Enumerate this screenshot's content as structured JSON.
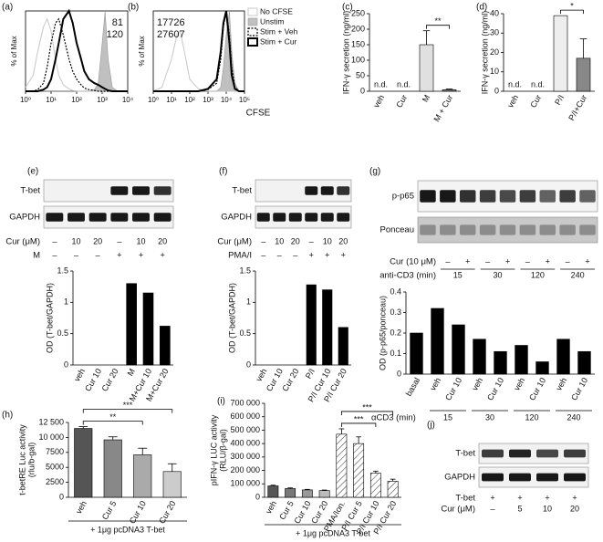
{
  "panel_labels": [
    "(a)",
    "(b)",
    "(c)",
    "(d)",
    "(e)",
    "(f)",
    "(g)",
    "(h)",
    "(i)",
    "(j)"
  ],
  "chart_data": [
    {
      "type": "line",
      "ylabel": "% of Max",
      "log_x": true,
      "xlim": [
        1,
        10000
      ],
      "xticks": [
        {
          "value": 1,
          "label": "10⁰"
        },
        {
          "value": 10,
          "label": "10¹"
        },
        {
          "value": 100,
          "label": "10²"
        },
        {
          "value": 1000,
          "label": "10³"
        },
        {
          "value": 10000,
          "label": "10⁴"
        }
      ],
      "ylim": [
        0,
        100
      ],
      "annotations": [
        "81",
        "120"
      ],
      "x": [
        1,
        2,
        3,
        5,
        7,
        10,
        15,
        20,
        30,
        50,
        70,
        100,
        150,
        200,
        300,
        500,
        700,
        1000,
        1300,
        1700,
        2500,
        4000,
        10000
      ],
      "series": [
        {
          "color": "#c8c8c8",
          "style": "thin",
          "values": [
            5,
            20,
            50,
            80,
            90,
            75,
            40,
            20,
            8,
            3,
            1,
            0,
            0,
            0,
            0,
            0,
            0,
            0,
            0,
            0,
            0,
            0,
            0
          ]
        },
        {
          "color": "#c0c0c0",
          "style": "filled",
          "values": [
            0,
            0,
            0,
            0,
            0,
            0,
            0,
            0,
            0,
            0,
            0,
            0,
            0,
            0,
            0,
            2,
            10,
            60,
            100,
            40,
            5,
            0,
            0
          ]
        },
        {
          "color": "#000000",
          "style": "dotted",
          "values": [
            0,
            0,
            2,
            10,
            30,
            60,
            85,
            90,
            70,
            40,
            25,
            15,
            8,
            4,
            2,
            1,
            0,
            0,
            0,
            0,
            0,
            0,
            0
          ]
        },
        {
          "color": "#000000",
          "style": "thick",
          "values": [
            0,
            0,
            0,
            2,
            5,
            15,
            40,
            60,
            90,
            100,
            85,
            60,
            40,
            25,
            15,
            10,
            8,
            5,
            3,
            1,
            0,
            0,
            0
          ]
        }
      ]
    },
    {
      "type": "line",
      "ylabel": "% of Max",
      "xlabel": "CFSE",
      "log_x": true,
      "xlim": [
        1,
        100000
      ],
      "xticks": [
        {
          "value": 1,
          "label": "10⁰"
        },
        {
          "value": 10,
          "label": "10¹"
        },
        {
          "value": 100,
          "label": "10²"
        },
        {
          "value": 1000,
          "label": "10³"
        },
        {
          "value": 10000,
          "label": "10⁴"
        },
        {
          "value": 100000,
          "label": "10⁵"
        }
      ],
      "ylim": [
        0,
        100
      ],
      "annotations": [
        "17726",
        "27607"
      ],
      "legend": "right",
      "x": [
        1,
        3,
        10,
        20,
        30,
        50,
        100,
        300,
        1000,
        3000,
        5000,
        7000,
        10000,
        15000,
        20000,
        30000,
        50000,
        100000
      ],
      "series": [
        {
          "name": "No CFSE",
          "color": "#c8c8c8",
          "style": "thin",
          "values": [
            0,
            5,
            40,
            70,
            75,
            50,
            15,
            3,
            0,
            0,
            0,
            0,
            0,
            0,
            0,
            0,
            0,
            0
          ]
        },
        {
          "name": "Unstim",
          "color": "#c0c0c0",
          "style": "filled",
          "values": [
            0,
            0,
            0,
            0,
            0,
            0,
            0,
            0,
            0,
            0,
            5,
            30,
            70,
            100,
            50,
            10,
            0,
            0
          ]
        },
        {
          "name": "Stim + Veh",
          "color": "#000000",
          "style": "dotted",
          "values": [
            0,
            0,
            0,
            0,
            0,
            0,
            0,
            0,
            2,
            10,
            40,
            80,
            100,
            70,
            30,
            5,
            0,
            0
          ]
        },
        {
          "name": "Stim + Cur",
          "color": "#000000",
          "style": "thick",
          "values": [
            0,
            0,
            0,
            0,
            0,
            0,
            0,
            0,
            3,
            15,
            50,
            85,
            100,
            60,
            20,
            3,
            0,
            0
          ]
        }
      ]
    },
    {
      "type": "bar",
      "ylabel": [
        "IFN-γ secretion (ng/ml)"
      ],
      "categories": [
        "veh",
        "Cur",
        "M",
        "M + Cur"
      ],
      "values": [
        null,
        null,
        150,
        5
      ],
      "value_labels": [
        "n.d.",
        "n.d.",
        null,
        null
      ],
      "errors": [
        null,
        null,
        45,
        2
      ],
      "colors": [
        null,
        null,
        "#e0e0e0",
        "#888888"
      ],
      "ylim": [
        0,
        250
      ],
      "yticks": [
        0,
        50,
        100,
        150,
        200,
        250
      ],
      "significance": [
        "**"
      ]
    },
    {
      "type": "bar",
      "ylabel": [
        "IFN-γ secretion (ng/ml)"
      ],
      "categories": [
        "veh",
        "Cur",
        "P/I",
        "P/I+Cur"
      ],
      "values": [
        null,
        null,
        39,
        17
      ],
      "value_labels": [
        "n.d.",
        "n.d.",
        null,
        null
      ],
      "errors": [
        null,
        null,
        null,
        10
      ],
      "colors": [
        null,
        null,
        "#eeeeee",
        "#888888"
      ],
      "ylim": [
        0,
        40
      ],
      "yticks": [
        0,
        10,
        20,
        30,
        40
      ],
      "significance": [
        "*"
      ]
    },
    {
      "type": "bar",
      "ylabel": [
        "OD (T-bet/GAPDH)"
      ],
      "categories": [
        "veh",
        "Cur 10",
        "Cur 20",
        "M",
        "M+Cur 10",
        "M+Cur 20"
      ],
      "values": [
        0,
        0,
        0,
        1.3,
        1.15,
        0.62
      ],
      "color": "#000000",
      "ylim": [
        0,
        1.5
      ],
      "yticks": [
        0,
        0.5,
        1,
        1.5
      ]
    },
    {
      "type": "bar",
      "ylabel": [
        "OD (T-bet/GAPDH)"
      ],
      "categories": [
        "veh",
        "Cur 10",
        "Cur 20",
        "P/I",
        "P/I Cur 10",
        "P/I Cur 20"
      ],
      "values": [
        0,
        0,
        0,
        1.28,
        1.2,
        0.6
      ],
      "color": "#000000",
      "ylim": [
        0,
        1.5
      ],
      "yticks": [
        0,
        0.5,
        1,
        1.5
      ]
    },
    {
      "type": "bar",
      "ylabel": [
        "OD (p-p65/ponceau)"
      ],
      "categories": [
        "basal",
        "veh",
        "Cur 10",
        "veh",
        "Cur 10",
        "veh",
        "Cur 10",
        "veh",
        "Cur 10"
      ],
      "values": [
        0.2,
        0.32,
        0.24,
        0.17,
        0.11,
        0.14,
        0.06,
        0.17,
        0.11
      ],
      "color": "#000000",
      "ylim": [
        0,
        0.4
      ],
      "yticks": [
        0,
        0.1,
        0.2,
        0.3,
        0.4
      ],
      "group_title": "αCD3 (min)",
      "groups": [
        "15",
        "30",
        "120",
        "240"
      ]
    },
    {
      "type": "bar",
      "ylabel": [
        "t-betRE Luc activity",
        "(rlu/b-gal)"
      ],
      "categories": [
        "veh",
        "Cur 5",
        "Cur 10",
        "Cur 20"
      ],
      "values": [
        11500,
        9600,
        7100,
        4300
      ],
      "errors": [
        300,
        500,
        1100,
        1300
      ],
      "colors": [
        "#555555",
        "#888888",
        "#aaaaaa",
        "#cccccc"
      ],
      "ylim": [
        0,
        12500
      ],
      "yticks": [
        0,
        2500,
        5000,
        7500,
        {
          "value": 10000,
          "label": "10 000"
        },
        {
          "value": 12500,
          "label": "12 500"
        }
      ],
      "significance": [
        "***",
        "**"
      ],
      "footnote": "+ 1μg pcDNA3 T-bet"
    },
    {
      "type": "bar",
      "ylabel": [
        "pIFN-γ LUC activity",
        "(RLU/β-gal)"
      ],
      "categories": [
        "veh",
        "Cur 5",
        "Cur 10",
        "Cur 20",
        "PMA/Ion.",
        "P/I Cur 5",
        "P/I Cur 10",
        "P/I Cur 20"
      ],
      "values": [
        85000,
        65000,
        55000,
        50000,
        470000,
        400000,
        180000,
        120000
      ],
      "errors": [
        5000,
        5000,
        4000,
        4000,
        40000,
        50000,
        15000,
        15000
      ],
      "colors": [
        "#555555",
        "#777777",
        "#999999",
        "#bbbbbb",
        "#ffffff",
        "#ffffff",
        "#ffffff",
        "#ffffff"
      ],
      "hatched": [
        false,
        false,
        false,
        false,
        true,
        true,
        true,
        true
      ],
      "ylim": [
        0,
        700000
      ],
      "yticks": [
        0,
        {
          "value": 100000,
          "label": "100 000"
        },
        {
          "value": 200000,
          "label": "200 000"
        },
        {
          "value": 300000,
          "label": "300 000"
        },
        {
          "value": 400000,
          "label": "400 000"
        },
        {
          "value": 500000,
          "label": "500 000"
        },
        {
          "value": 600000,
          "label": "600 000"
        },
        {
          "value": 700000,
          "label": "700 000"
        }
      ],
      "significance": [
        "***",
        "***"
      ],
      "footnote": "+ 1μg pcDNA3 T-bet"
    }
  ],
  "blots": [
    {
      "bands": [
        "T-bet",
        "GAPDH"
      ],
      "rows": [
        {
          "label": "Cur (μM)",
          "lanes": [
            "–",
            "10",
            "20",
            "–",
            "10",
            "20"
          ]
        },
        {
          "label": "M",
          "lanes": [
            "–",
            "–",
            "–",
            "+",
            "+",
            "+"
          ]
        }
      ]
    },
    {
      "bands": [
        "T-bet",
        "GAPDH"
      ],
      "rows": [
        {
          "label": "Cur (μM)",
          "lanes": [
            "–",
            "10",
            "20",
            "–",
            "10",
            "20"
          ]
        },
        {
          "label": "PMA/I",
          "lanes": [
            "–",
            "–",
            "–",
            "+",
            "+",
            "+"
          ]
        }
      ]
    },
    {
      "bands": [
        "p-p65",
        "Ponceau"
      ],
      "rows": [
        {
          "label": "Cur (10 μM)",
          "lanes": [
            null,
            "–",
            "+",
            "–",
            "+",
            "–",
            "+",
            "–",
            "+"
          ]
        },
        {
          "label": "anti-CD3 (min)",
          "groups": [
            "15",
            "30",
            "120",
            "240"
          ]
        }
      ]
    },
    {
      "bands": [
        "T-bet",
        "GAPDH"
      ],
      "rows": [
        {
          "label": "T-bet",
          "lanes": [
            "+",
            "+",
            "+",
            "+"
          ]
        },
        {
          "label": "Cur (μM)",
          "lanes": [
            "–",
            "5",
            "10",
            "20"
          ]
        }
      ]
    }
  ]
}
